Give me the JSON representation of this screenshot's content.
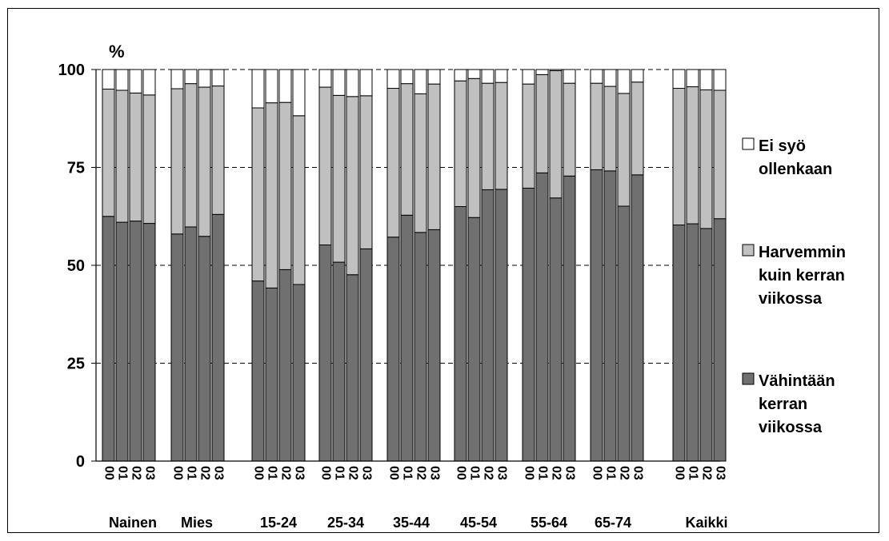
{
  "chart_data": {
    "type": "bar",
    "stacked": true,
    "y_unit": "%",
    "ylim": [
      0,
      100
    ],
    "y_ticks": [
      0,
      25,
      50,
      75,
      100
    ],
    "grid": "dashed horizontal",
    "legend_position": "right",
    "groups": [
      "Nainen",
      "Mies",
      "15-24",
      "25-34",
      "35-44",
      "45-54",
      "55-64",
      "65-74",
      "Kaikki"
    ],
    "years": [
      "00",
      "01",
      "02",
      "03"
    ],
    "series": [
      {
        "name": "Vähintään kerran viikossa",
        "legend_lines": [
          "Vähintään",
          "kerran",
          "viikossa"
        ],
        "color": "#707070",
        "values": [
          [
            62.5,
            61.0,
            61.3,
            60.7
          ],
          [
            58.0,
            59.8,
            57.4,
            63.0
          ],
          [
            46.0,
            44.2,
            48.9,
            45.1
          ],
          [
            55.2,
            50.8,
            47.6,
            54.2
          ],
          [
            57.2,
            62.8,
            58.4,
            59.1
          ],
          [
            65.0,
            62.2,
            69.3,
            69.4
          ],
          [
            69.7,
            73.6,
            67.2,
            72.8
          ],
          [
            74.4,
            74.1,
            65.1,
            73.1
          ],
          [
            60.3,
            60.6,
            59.4,
            61.9
          ]
        ]
      },
      {
        "name": "Harvemmin kuin kerran viikossa",
        "legend_lines": [
          "Harvemmin",
          "kuin kerran",
          "viikossa"
        ],
        "color": "#c0c0c0",
        "values": [
          [
            32.5,
            33.7,
            32.7,
            32.8
          ],
          [
            37.1,
            36.6,
            38.1,
            32.8
          ],
          [
            44.2,
            47.3,
            42.7,
            43.1
          ],
          [
            40.3,
            42.6,
            45.5,
            39.1
          ],
          [
            38.0,
            33.6,
            35.4,
            37.2
          ],
          [
            32.1,
            35.5,
            27.2,
            27.3
          ],
          [
            26.6,
            25.1,
            32.5,
            23.7
          ],
          [
            22.1,
            21.6,
            28.8,
            23.7
          ],
          [
            34.9,
            35.0,
            35.4,
            32.8
          ]
        ]
      },
      {
        "name": "Ei syö ollenkaan",
        "legend_lines": [
          "Ei syö",
          "ollenkaan"
        ],
        "color": "#ffffff",
        "values": [
          [
            5.0,
            5.3,
            6.0,
            6.5
          ],
          [
            4.9,
            3.6,
            4.5,
            4.2
          ],
          [
            9.8,
            8.5,
            8.4,
            11.8
          ],
          [
            4.5,
            6.6,
            6.9,
            6.7
          ],
          [
            4.8,
            3.6,
            6.2,
            3.7
          ],
          [
            2.9,
            2.3,
            3.5,
            3.3
          ],
          [
            3.7,
            1.3,
            0.3,
            3.5
          ],
          [
            3.5,
            4.3,
            6.1,
            3.2
          ],
          [
            4.8,
            4.4,
            5.2,
            5.3
          ]
        ]
      }
    ]
  }
}
